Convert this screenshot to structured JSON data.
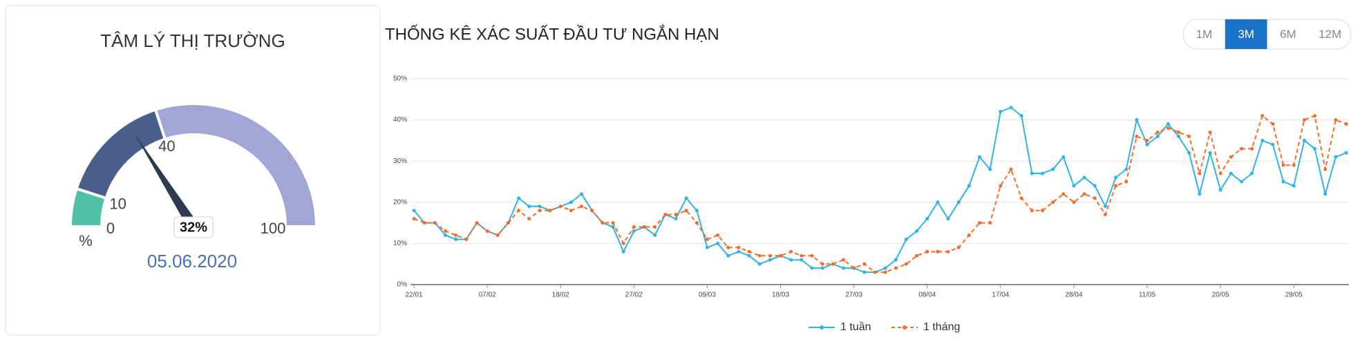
{
  "sentiment": {
    "title": "TÂM LÝ THỊ TRƯỜNG",
    "gauge": {
      "min": 0,
      "max": 100,
      "ticks": [
        0,
        10,
        40,
        100
      ],
      "band_colors": [
        "#4fc1a6",
        "#4a5e8a",
        "#a3a6d4"
      ],
      "value": 32,
      "value_label": "32%",
      "unit": "%",
      "date": "05.06.2020"
    }
  },
  "range_buttons": {
    "options": [
      "1M",
      "3M",
      "6M",
      "12M"
    ],
    "active": 1
  },
  "chart_data": {
    "type": "line",
    "title": "THỐNG KÊ XÁC SUẤT ĐẦU TƯ NGẮN HẠN",
    "categories": [
      "22/01",
      null,
      null,
      null,
      null,
      null,
      null,
      "07/02",
      null,
      null,
      null,
      null,
      null,
      null,
      "18/02",
      null,
      null,
      null,
      null,
      null,
      null,
      "27/02",
      null,
      null,
      null,
      null,
      null,
      null,
      "09/03",
      null,
      null,
      null,
      null,
      null,
      null,
      "18/03",
      null,
      null,
      null,
      null,
      null,
      null,
      "27/03",
      null,
      null,
      null,
      null,
      null,
      null,
      "08/04",
      null,
      null,
      null,
      null,
      null,
      null,
      "17/04",
      null,
      null,
      null,
      null,
      null,
      null,
      "28/04",
      null,
      null,
      null,
      null,
      null,
      null,
      "11/05",
      null,
      null,
      null,
      null,
      null,
      null,
      "20/05",
      null,
      null,
      null,
      null,
      null,
      null,
      "29/05",
      null,
      null,
      null,
      null,
      null
    ],
    "series": [
      {
        "name": "1 tuần",
        "color": "#2fb3e6",
        "dashed": false,
        "values": [
          18,
          15,
          15,
          12,
          11,
          11,
          15,
          13,
          12,
          15,
          21,
          19,
          19,
          18,
          19,
          20,
          22,
          18,
          15,
          14,
          8,
          13,
          14,
          12,
          17,
          16,
          21,
          18,
          9,
          10,
          7,
          8,
          7,
          5,
          6,
          7,
          6,
          6,
          4,
          4,
          5,
          4,
          4,
          3,
          3,
          4,
          6,
          11,
          13,
          16,
          20,
          16,
          20,
          24,
          31,
          28,
          42,
          43,
          41,
          27,
          27,
          28,
          31,
          24,
          26,
          24,
          19,
          26,
          28,
          40,
          34,
          36,
          39,
          36,
          32,
          22,
          32,
          23,
          27,
          25,
          27,
          35,
          34,
          25,
          24,
          35,
          33,
          22,
          31,
          32
        ]
      },
      {
        "name": "1 tháng",
        "color": "#f26c2a",
        "dashed": true,
        "values": [
          16,
          15,
          15,
          13,
          12,
          11,
          15,
          13,
          12,
          15,
          18,
          16,
          18,
          18,
          19,
          18,
          19,
          18,
          15,
          15,
          10,
          14,
          14,
          14,
          17,
          17,
          18,
          15,
          11,
          12,
          9,
          9,
          8,
          7,
          7,
          7,
          8,
          7,
          7,
          5,
          5,
          6,
          4,
          5,
          3,
          3,
          4,
          5,
          7,
          8,
          8,
          8,
          9,
          12,
          15,
          15,
          24,
          28,
          21,
          18,
          18,
          20,
          22,
          20,
          22,
          21,
          17,
          24,
          25,
          36,
          35,
          37,
          38,
          37,
          36,
          27,
          37,
          27,
          31,
          33,
          33,
          41,
          39,
          29,
          29,
          40,
          41,
          28,
          40,
          39
        ]
      }
    ],
    "ylim": [
      0,
      50
    ],
    "yticks": [
      {
        "value": 0,
        "label": "0%"
      },
      {
        "value": 10,
        "label": "10%"
      },
      {
        "value": 20,
        "label": "20%"
      },
      {
        "value": 30,
        "label": "30%"
      },
      {
        "value": 40,
        "label": "40%"
      },
      {
        "value": 50,
        "label": "50%"
      }
    ],
    "grid": true,
    "legend": "bottom"
  }
}
